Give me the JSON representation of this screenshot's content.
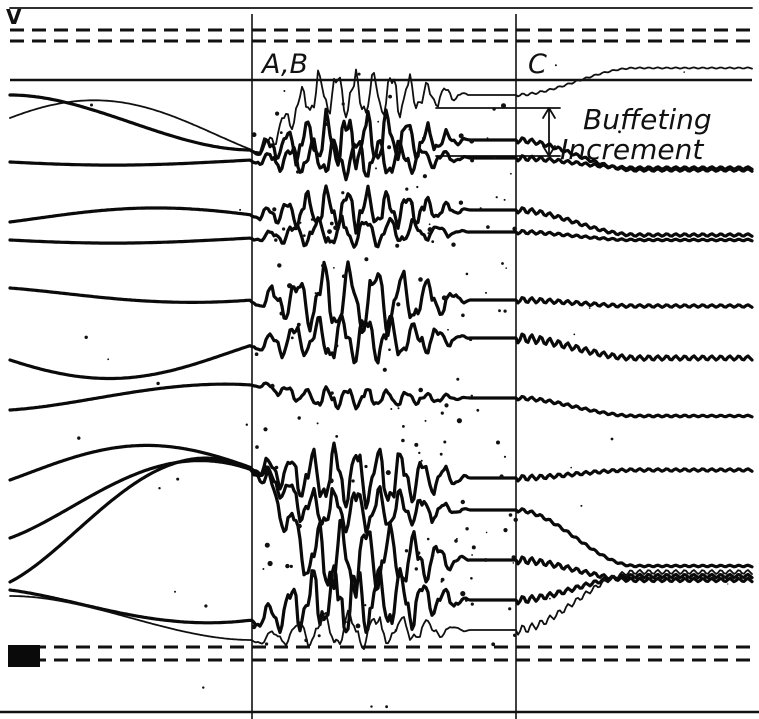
{
  "chart_data": {
    "type": "line",
    "title": "",
    "xlabel": "",
    "ylabel": "",
    "grid": false,
    "markers": [
      {
        "label": "A,B"
      },
      {
        "label": "C"
      }
    ],
    "annotations": [
      {
        "text": "Buffeting"
      },
      {
        "text": "Increment"
      }
    ],
    "corner_mark": "V"
  }
}
